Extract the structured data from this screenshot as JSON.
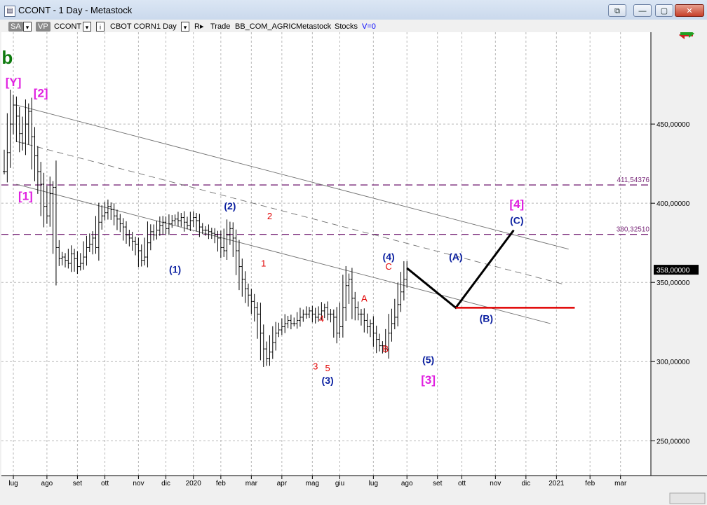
{
  "window": {
    "title": "CCONT - 1 Day - Metastock",
    "buttons": [
      "restore-sub",
      "minimize",
      "restore",
      "close"
    ]
  },
  "toolbar": {
    "sa": "SA",
    "vp": "VP",
    "symbol": "CCONT",
    "name": "CBOT CORN",
    "period": "1 Day",
    "r_label": "R",
    "trade": "Trade",
    "list": "BB_COM_AGRIC",
    "source": "Metastock",
    "category": "Stocks",
    "volume": "V=0"
  },
  "colors": {
    "background": "#ffffff",
    "price": "#000000",
    "wave_blue": "#0a1fa0",
    "wave_magenta": "#e020e0",
    "wave_red": "#e00000",
    "fib_level": "#7a2a7a",
    "grid": "#b8b8b8"
  },
  "chart_data": {
    "type": "line",
    "title": "",
    "xlabel": "",
    "ylabel": "",
    "ylim": [
      228,
      508
    ],
    "y_ticks": [
      250,
      300,
      350,
      400,
      450
    ],
    "y_tick_labels": [
      "250,00000",
      "300,00000",
      "350,00000",
      "400,00000",
      "450,00000"
    ],
    "x_tick_labels": [
      "lug",
      "ago",
      "set",
      "ott",
      "nov",
      "dic",
      "2020",
      "feb",
      "mar",
      "apr",
      "mag",
      "giu",
      "lug",
      "ago",
      "set",
      "ott",
      "nov",
      "dic",
      "2021",
      "feb",
      "mar"
    ],
    "x_tick_index": [
      3,
      14,
      24,
      33,
      44,
      53,
      62,
      71,
      81,
      91,
      101,
      110,
      121,
      132,
      142,
      150,
      161,
      171,
      181,
      192,
      202
    ],
    "last_price_label": "358,00000",
    "price_series": [
      [
        0,
        420
      ],
      [
        1,
        432
      ],
      [
        2,
        450
      ],
      [
        3,
        462
      ],
      [
        4,
        455
      ],
      [
        5,
        444
      ],
      [
        6,
        438
      ],
      [
        7,
        450
      ],
      [
        8,
        458
      ],
      [
        9,
        442
      ],
      [
        10,
        430
      ],
      [
        11,
        420
      ],
      [
        12,
        412
      ],
      [
        13,
        398
      ],
      [
        14,
        392
      ],
      [
        15,
        406
      ],
      [
        16,
        410
      ],
      [
        17,
        372
      ],
      [
        18,
        365
      ],
      [
        19,
        366
      ],
      [
        20,
        364
      ],
      [
        21,
        362
      ],
      [
        22,
        368
      ],
      [
        23,
        365
      ],
      [
        24,
        360
      ],
      [
        25,
        362
      ],
      [
        26,
        366
      ],
      [
        27,
        372
      ],
      [
        28,
        374
      ],
      [
        29,
        378
      ],
      [
        30,
        372
      ],
      [
        31,
        388
      ],
      [
        32,
        392
      ],
      [
        33,
        394
      ],
      [
        34,
        398
      ],
      [
        35,
        396
      ],
      [
        36,
        392
      ],
      [
        37,
        390
      ],
      [
        38,
        387
      ],
      [
        39,
        385
      ],
      [
        40,
        380
      ],
      [
        41,
        378
      ],
      [
        42,
        376
      ],
      [
        43,
        374
      ],
      [
        44,
        370
      ],
      [
        45,
        364
      ],
      [
        46,
        366
      ],
      [
        47,
        375
      ],
      [
        48,
        382
      ],
      [
        49,
        380
      ],
      [
        50,
        383
      ],
      [
        51,
        386
      ],
      [
        52,
        388
      ],
      [
        53,
        384
      ],
      [
        54,
        387
      ],
      [
        55,
        389
      ],
      [
        56,
        390
      ],
      [
        57,
        389
      ],
      [
        58,
        391
      ],
      [
        59,
        388
      ],
      [
        60,
        386
      ],
      [
        61,
        389
      ],
      [
        62,
        391
      ],
      [
        63,
        389
      ],
      [
        64,
        385
      ],
      [
        65,
        383
      ],
      [
        66,
        383
      ],
      [
        67,
        382
      ],
      [
        68,
        381
      ],
      [
        69,
        380
      ],
      [
        70,
        378
      ],
      [
        71,
        372
      ],
      [
        72,
        370
      ],
      [
        73,
        380
      ],
      [
        74,
        384
      ],
      [
        75,
        378
      ],
      [
        76,
        370
      ],
      [
        77,
        360
      ],
      [
        78,
        352
      ],
      [
        79,
        346
      ],
      [
        80,
        342
      ],
      [
        81,
        338
      ],
      [
        82,
        334
      ],
      [
        83,
        330
      ],
      [
        84,
        318
      ],
      [
        85,
        308
      ],
      [
        86,
        302
      ],
      [
        87,
        306
      ],
      [
        88,
        312
      ],
      [
        89,
        318
      ],
      [
        90,
        320
      ],
      [
        91,
        322
      ],
      [
        92,
        324
      ],
      [
        93,
        326
      ],
      [
        94,
        324
      ],
      [
        95,
        324
      ],
      [
        96,
        326
      ],
      [
        97,
        328
      ],
      [
        98,
        330
      ],
      [
        99,
        330
      ],
      [
        100,
        332
      ],
      [
        101,
        330
      ],
      [
        102,
        328
      ],
      [
        103,
        330
      ],
      [
        104,
        332
      ],
      [
        105,
        334
      ],
      [
        106,
        330
      ],
      [
        107,
        330
      ],
      [
        108,
        328
      ],
      [
        109,
        318
      ],
      [
        110,
        322
      ],
      [
        111,
        334
      ],
      [
        112,
        348
      ],
      [
        113,
        352
      ],
      [
        114,
        340
      ],
      [
        115,
        334
      ],
      [
        116,
        330
      ],
      [
        117,
        330
      ],
      [
        118,
        326
      ],
      [
        119,
        322
      ],
      [
        120,
        324
      ],
      [
        121,
        318
      ],
      [
        122,
        314
      ],
      [
        123,
        310
      ],
      [
        124,
        310
      ],
      [
        125,
        308
      ],
      [
        126,
        318
      ],
      [
        127,
        324
      ],
      [
        128,
        328
      ],
      [
        129,
        336
      ],
      [
        130,
        344
      ],
      [
        131,
        352
      ],
      [
        132,
        358
      ]
    ],
    "projection": [
      [
        132,
        359
      ],
      [
        148,
        334
      ],
      [
        167,
        383
      ]
    ],
    "projection_b_level": 334,
    "projection_b_line": {
      "x1": 148,
      "x2": 187
    },
    "fib_levels": [
      {
        "value": 411.54376,
        "label": "411,54376"
      },
      {
        "value": 380.3251,
        "label": "380,32510"
      }
    ],
    "channels": [
      {
        "x1": 4,
        "y1": 462,
        "x2": 185,
        "y2": 371,
        "style": "solid"
      },
      {
        "x1": 4,
        "y1": 439,
        "x2": 183,
        "y2": 349,
        "style": "dashed"
      },
      {
        "x1": 4,
        "y1": 412,
        "x2": 179,
        "y2": 324,
        "style": "solid"
      }
    ],
    "annotations": [
      {
        "text": "b",
        "i": 1,
        "v": 488,
        "color": "green",
        "size": 26,
        "bold": true
      },
      {
        "text": "[Y]",
        "i": 3,
        "v": 474,
        "color": "magenta",
        "size": 17
      },
      {
        "text": "[2]",
        "i": 12,
        "v": 467,
        "color": "magenta",
        "size": 17
      },
      {
        "text": "[1]",
        "i": 7,
        "v": 402,
        "color": "magenta",
        "size": 17
      },
      {
        "text": "(2)",
        "i": 74,
        "v": 396,
        "color": "blue",
        "size": 14
      },
      {
        "text": "2",
        "i": 87,
        "v": 390,
        "color": "red",
        "size": 13
      },
      {
        "text": "1",
        "i": 85,
        "v": 360,
        "color": "red",
        "size": 13
      },
      {
        "text": "(1)",
        "i": 56,
        "v": 356,
        "color": "blue",
        "size": 14
      },
      {
        "text": "(4)",
        "i": 126,
        "v": 364,
        "color": "blue",
        "size": 14
      },
      {
        "text": "C",
        "i": 126,
        "v": 358,
        "color": "red",
        "size": 13
      },
      {
        "text": "A",
        "i": 118,
        "v": 338,
        "color": "red",
        "size": 13
      },
      {
        "text": "B",
        "i": 125,
        "v": 306,
        "color": "red",
        "size": 13
      },
      {
        "text": "4",
        "i": 104,
        "v": 325,
        "color": "red",
        "size": 13
      },
      {
        "text": "3",
        "i": 102,
        "v": 295,
        "color": "red",
        "size": 13
      },
      {
        "text": "5",
        "i": 106,
        "v": 294,
        "color": "red",
        "size": 13
      },
      {
        "text": "(3)",
        "i": 106,
        "v": 286,
        "color": "blue",
        "size": 14
      },
      {
        "text": "(5)",
        "i": 139,
        "v": 299,
        "color": "blue",
        "size": 14
      },
      {
        "text": "[3]",
        "i": 139,
        "v": 286,
        "color": "magenta",
        "size": 17
      },
      {
        "text": "(A)",
        "i": 148,
        "v": 364,
        "color": "blue",
        "size": 14
      },
      {
        "text": "(B)",
        "i": 158,
        "v": 325,
        "color": "blue",
        "size": 14
      },
      {
        "text": "[4]",
        "i": 168,
        "v": 397,
        "color": "magenta",
        "size": 17
      },
      {
        "text": "(C)",
        "i": 168,
        "v": 387,
        "color": "blue",
        "size": 14
      }
    ]
  }
}
